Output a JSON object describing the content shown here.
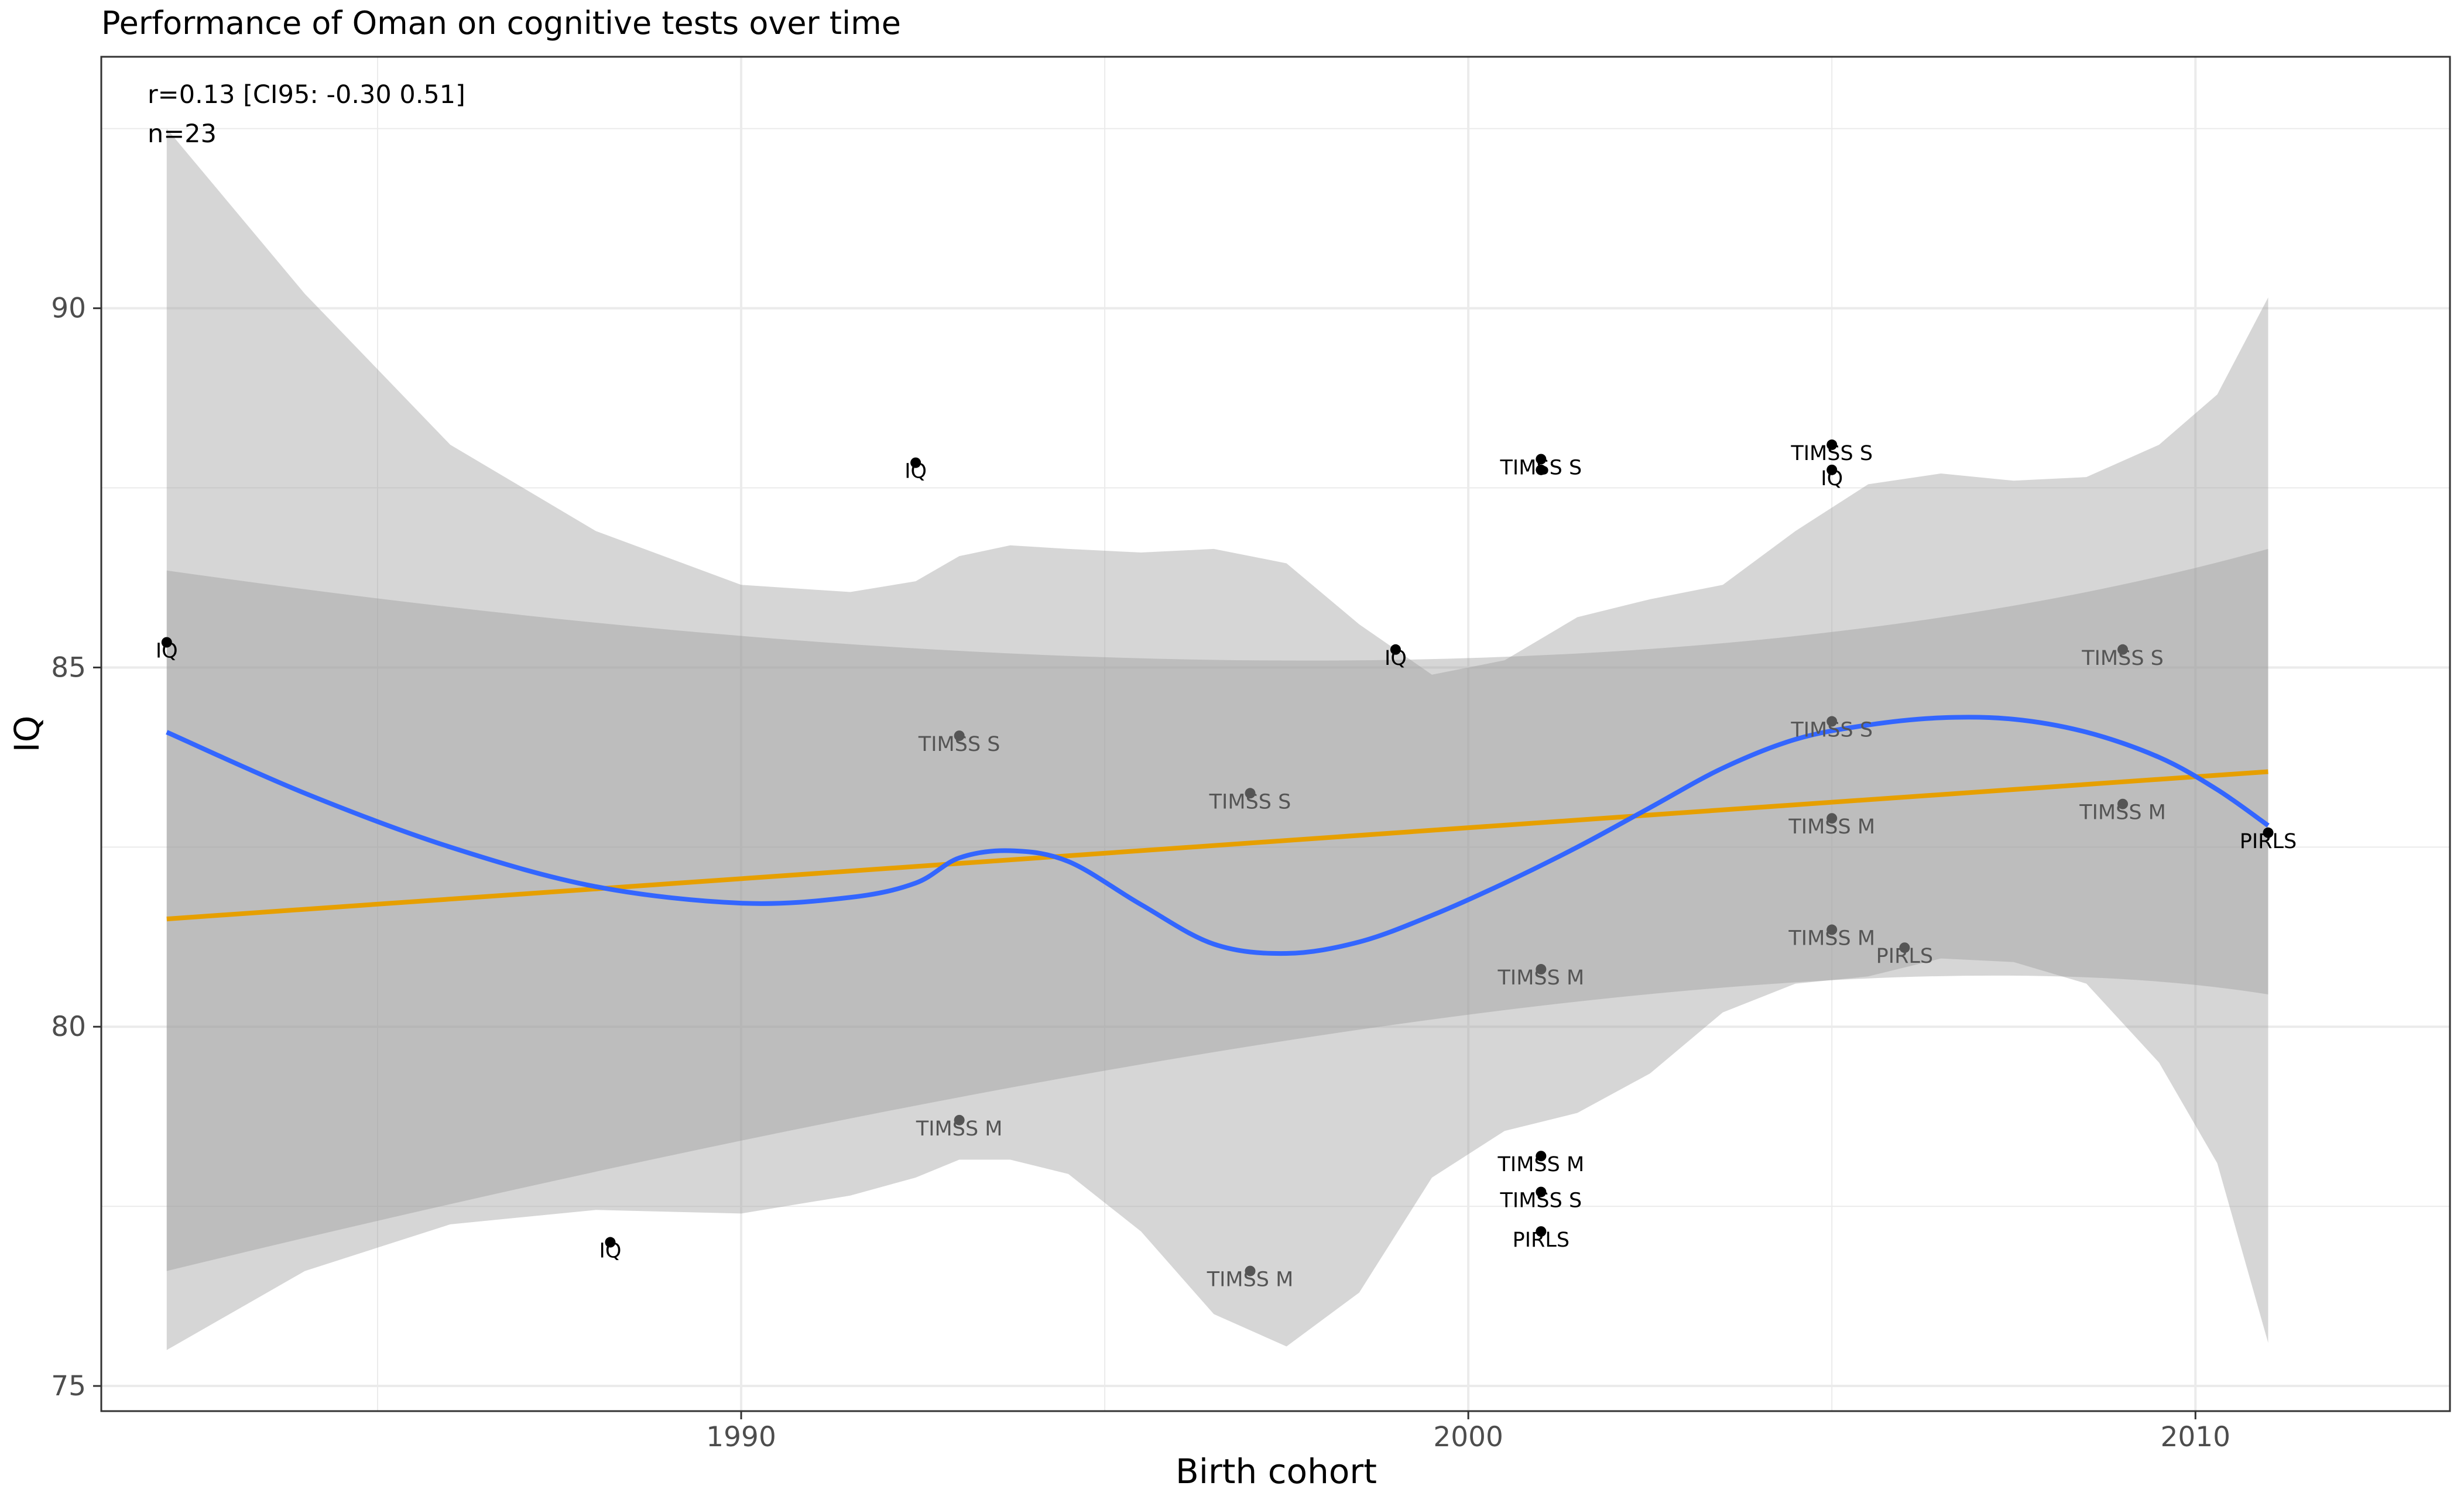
{
  "chart_data": {
    "type": "scatter",
    "title": "Performance of Oman on cognitive tests over time",
    "xlabel": "Birth cohort",
    "ylabel": "IQ",
    "xlim": [
      1981.2,
      2013.5
    ],
    "ylim": [
      74.65,
      93.5
    ],
    "x_ticks": [
      "1990",
      "2000",
      "2010"
    ],
    "y_ticks": [
      "75",
      "80",
      "85",
      "90"
    ],
    "grid": true,
    "annotations": {
      "r": "r=0.13 [CI95: -0.30 0.51]",
      "n": "n=23"
    },
    "colors": {
      "loess": "#3366ff",
      "linear": "#e69f00",
      "ci_band": "#999999",
      "point_dark": "#000000",
      "point_light": "#555555",
      "grid": "#ebebeb",
      "panel_border": "#333333"
    },
    "points": [
      {
        "x": 1982.1,
        "y": 85.35,
        "label": "IQ",
        "shade": "dark"
      },
      {
        "x": 1988.2,
        "y": 77.0,
        "label": "IQ",
        "shade": "dark"
      },
      {
        "x": 1992.4,
        "y": 87.85,
        "label": "IQ",
        "shade": "dark"
      },
      {
        "x": 1993.0,
        "y": 84.05,
        "label": "TIMSS S",
        "shade": "light"
      },
      {
        "x": 1993.0,
        "y": 78.7,
        "label": "TIMSS M",
        "shade": "light"
      },
      {
        "x": 1997.0,
        "y": 83.25,
        "label": "TIMSS S",
        "shade": "light"
      },
      {
        "x": 1997.0,
        "y": 76.6,
        "label": "TIMSS M",
        "shade": "light"
      },
      {
        "x": 1999.0,
        "y": 85.25,
        "label": "IQ",
        "shade": "dark"
      },
      {
        "x": 2001.0,
        "y": 87.9,
        "label": "TIMSS S",
        "shade": "dark"
      },
      {
        "x": 2001.0,
        "y": 87.75,
        "label": "",
        "shade": "dark"
      },
      {
        "x": 2001.0,
        "y": 80.8,
        "label": "TIMSS M",
        "shade": "light"
      },
      {
        "x": 2001.0,
        "y": 78.2,
        "label": "TIMSS M",
        "shade": "dark"
      },
      {
        "x": 2001.0,
        "y": 77.7,
        "label": "TIMSS S",
        "shade": "dark"
      },
      {
        "x": 2001.0,
        "y": 77.15,
        "label": "PIRLS",
        "shade": "dark"
      },
      {
        "x": 2005.0,
        "y": 88.1,
        "label": "TIMSS S",
        "shade": "dark"
      },
      {
        "x": 2005.0,
        "y": 87.75,
        "label": "IQ",
        "shade": "dark"
      },
      {
        "x": 2005.0,
        "y": 84.25,
        "label": "TIMSS S",
        "shade": "light"
      },
      {
        "x": 2005.0,
        "y": 82.9,
        "label": "TIMSS M",
        "shade": "light"
      },
      {
        "x": 2005.0,
        "y": 81.35,
        "label": "TIMSS M",
        "shade": "light"
      },
      {
        "x": 2006.0,
        "y": 81.1,
        "label": "PIRLS",
        "shade": "light"
      },
      {
        "x": 2009.0,
        "y": 85.25,
        "label": "TIMSS S",
        "shade": "light"
      },
      {
        "x": 2009.0,
        "y": 83.1,
        "label": "TIMSS M",
        "shade": "light"
      },
      {
        "x": 2011.0,
        "y": 82.7,
        "label": "PIRLS",
        "shade": "dark"
      }
    ],
    "linear_fit": {
      "x": [
        1982.1,
        2011.0
      ],
      "y": [
        81.5,
        83.55
      ],
      "ci_upper": [
        86.35,
        86.65
      ],
      "ci_lower": [
        76.6,
        80.45
      ],
      "ci_mid_upper": {
        "x": 2000.5,
        "y": 84.5
      },
      "ci_mid_lower": {
        "x": 2003.0,
        "y": 81.15
      }
    },
    "loess_fit": {
      "x": [
        1982.1,
        1984,
        1986,
        1988,
        1990,
        1991.5,
        1992.4,
        1993,
        1993.7,
        1994.5,
        1995.5,
        1996.5,
        1997.5,
        1998.5,
        1999.5,
        2000.5,
        2001.5,
        2002.5,
        2003.5,
        2004.5,
        2005.5,
        2006.5,
        2007.5,
        2008.5,
        2009.5,
        2010.3,
        2011.0
      ],
      "y": [
        84.1,
        83.25,
        82.5,
        81.95,
        81.72,
        81.8,
        82.0,
        82.35,
        82.45,
        82.3,
        81.7,
        81.15,
        81.02,
        81.18,
        81.55,
        82.0,
        82.5,
        83.05,
        83.6,
        84.0,
        84.2,
        84.3,
        84.28,
        84.1,
        83.75,
        83.3,
        82.8
      ],
      "ci_upper": [
        92.5,
        90.2,
        88.1,
        86.9,
        86.15,
        86.05,
        86.2,
        86.55,
        86.7,
        86.65,
        86.6,
        86.65,
        86.45,
        85.6,
        84.9,
        85.1,
        85.7,
        85.95,
        86.15,
        86.9,
        87.55,
        87.7,
        87.6,
        87.65,
        88.1,
        88.8,
        90.15
      ],
      "ci_lower": [
        75.5,
        76.6,
        77.25,
        77.45,
        77.4,
        77.65,
        77.9,
        78.15,
        78.15,
        77.95,
        77.15,
        76.0,
        75.55,
        76.3,
        77.9,
        78.55,
        78.8,
        79.35,
        80.2,
        80.6,
        80.7,
        80.95,
        80.9,
        80.6,
        79.5,
        78.1,
        75.6
      ]
    }
  }
}
